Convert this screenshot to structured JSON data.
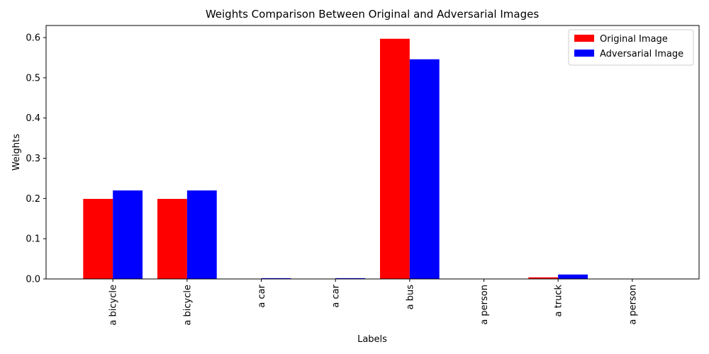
{
  "chart_data": {
    "type": "bar",
    "title": "Weights Comparison Between Original and Adversarial Images",
    "xlabel": "Labels",
    "ylabel": "Weights",
    "categories": [
      "a bicycle",
      "a bicycle",
      "a car",
      "a car",
      "a bus",
      "a person",
      "a truck",
      "a person"
    ],
    "series": [
      {
        "name": "Original Image",
        "color": "#ff0000",
        "values": [
          0.199,
          0.199,
          0.0,
          0.0,
          0.597,
          0.0,
          0.004,
          0.0
        ]
      },
      {
        "name": "Adversarial Image",
        "color": "#0000ff",
        "values": [
          0.22,
          0.22,
          0.002,
          0.002,
          0.546,
          0.0,
          0.011,
          0.0
        ]
      }
    ],
    "ylim": [
      0,
      0.63
    ],
    "yticks": [
      0.0,
      0.1,
      0.2,
      0.3,
      0.4,
      0.5,
      0.6
    ],
    "ytick_labels": [
      "0.0",
      "0.1",
      "0.2",
      "0.3",
      "0.4",
      "0.5",
      "0.6"
    ],
    "grid": false,
    "legend_position": "top-right"
  }
}
